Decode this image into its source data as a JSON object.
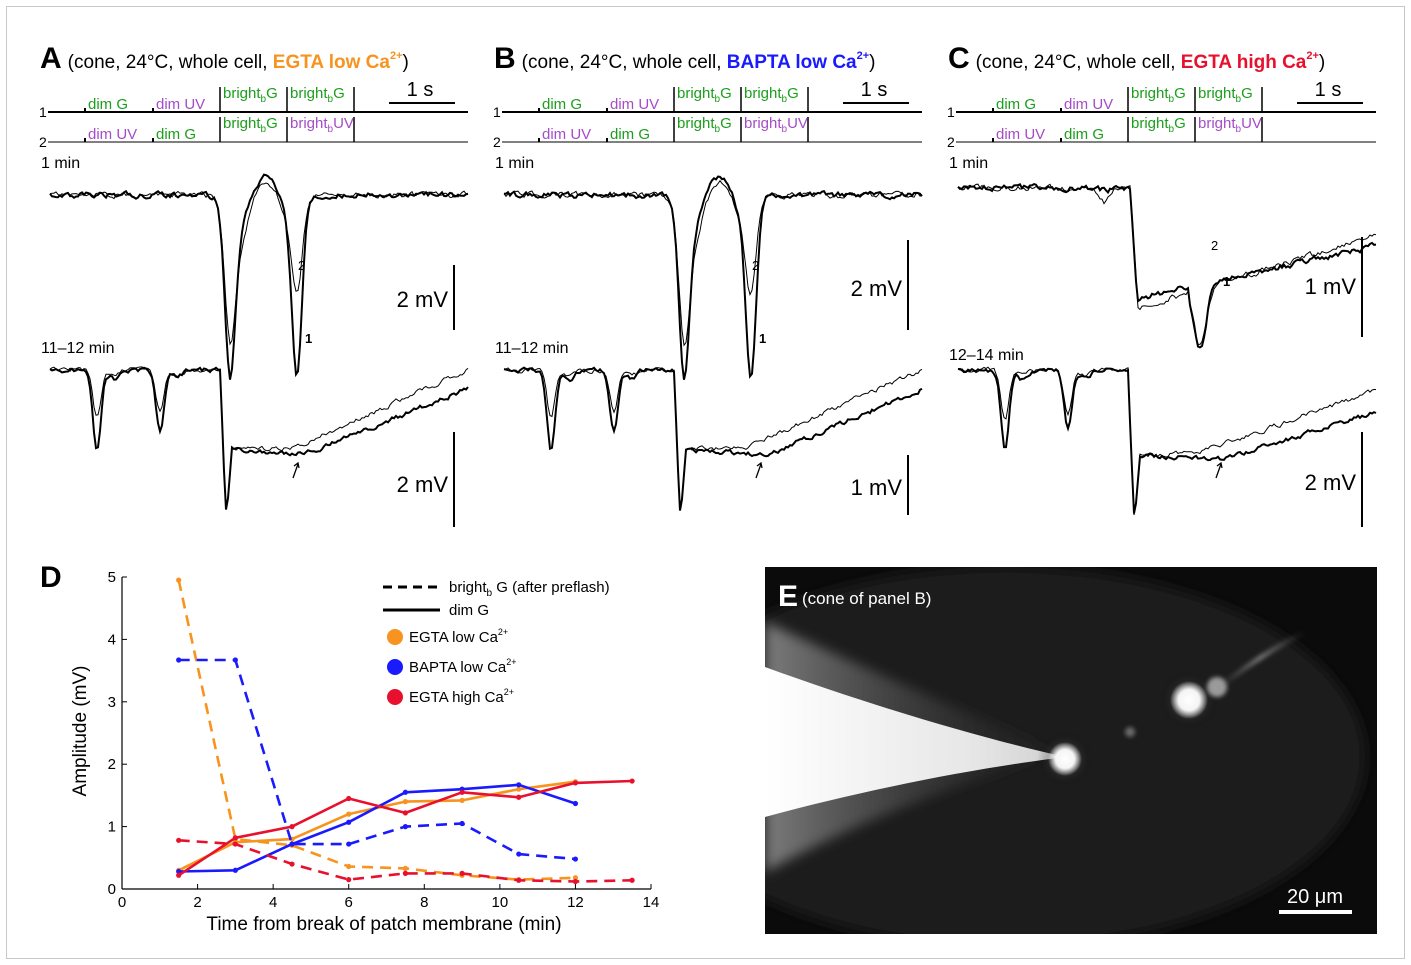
{
  "figure": {
    "colors": {
      "orange": "#f7931e",
      "blue": "#1a1aff",
      "red": "#e8112d",
      "green": "#1b9e1b",
      "purple": "#a64bc8",
      "black": "#000000"
    },
    "panels": [
      {
        "letter": "A",
        "title_pre": "(cone, 24°C, whole cell, ",
        "title_solution": "EGTA low Ca",
        "title_sup": "2+",
        "title_post": ")",
        "title_color": "orange",
        "timescale": "1 s",
        "stim_row1": [
          "dim G",
          "dim UV",
          "bright",
          "bright"
        ],
        "stim_row1_sub": [
          "",
          "",
          "b",
          "b"
        ],
        "stim_row1_tail": [
          "",
          "",
          "G",
          "G"
        ],
        "stim_row2": [
          "dim UV",
          "dim G",
          "bright",
          "bright"
        ],
        "stim_row2_sub": [
          "",
          "",
          "b",
          "b"
        ],
        "stim_row2_tail": [
          "",
          "",
          "G",
          "UV"
        ],
        "row_numbers": [
          "1",
          "2"
        ],
        "top_time": "1 min",
        "top_scale": "2 mV",
        "bottom_time": "11–12 min",
        "bottom_scale": "2 mV",
        "trace_label_thin": "2",
        "trace_label_thick": "1"
      },
      {
        "letter": "B",
        "title_pre": "(cone, 24°C, whole cell, ",
        "title_solution": "BAPTA low Ca",
        "title_sup": "2+",
        "title_post": ")",
        "title_color": "blue",
        "timescale": "1 s",
        "stim_row1": [
          "dim G",
          "dim UV",
          "bright",
          "bright"
        ],
        "stim_row1_sub": [
          "",
          "",
          "b",
          "b"
        ],
        "stim_row1_tail": [
          "",
          "",
          "G",
          "G"
        ],
        "stim_row2": [
          "dim UV",
          "dim G",
          "bright",
          "bright"
        ],
        "stim_row2_sub": [
          "",
          "",
          "b",
          "b"
        ],
        "stim_row2_tail": [
          "",
          "",
          "G",
          "UV"
        ],
        "row_numbers": [
          "1",
          "2"
        ],
        "top_time": "1 min",
        "top_scale": "2 mV",
        "bottom_time": "11–12 min",
        "bottom_scale": "1 mV",
        "trace_label_thin": "2",
        "trace_label_thick": "1"
      },
      {
        "letter": "C",
        "title_pre": "(cone, 24°C, whole cell, ",
        "title_solution": "EGTA high Ca",
        "title_sup": "2+",
        "title_post": ")",
        "title_color": "red",
        "timescale": "1 s",
        "stim_row1": [
          "dim G",
          "dim UV",
          "bright",
          "bright"
        ],
        "stim_row1_sub": [
          "",
          "",
          "b",
          "b"
        ],
        "stim_row1_tail": [
          "",
          "",
          "G",
          "G"
        ],
        "stim_row2": [
          "dim UV",
          "dim G",
          "bright",
          "bright"
        ],
        "stim_row2_sub": [
          "",
          "",
          "b",
          "b"
        ],
        "stim_row2_tail": [
          "",
          "",
          "G",
          "UV"
        ],
        "row_numbers": [
          "1",
          "2"
        ],
        "top_time": "1 min",
        "top_scale": "1 mV",
        "bottom_time": "12–14 min",
        "bottom_scale": "2 mV",
        "trace_label_thin": "2",
        "trace_label_thick": "1"
      }
    ],
    "panel_e": {
      "letter": "E",
      "caption": "(cone of panel B)",
      "scalebar": "20 μm"
    }
  },
  "chart_data": {
    "type": "line",
    "panel_letter": "D",
    "xlabel": "Time from break of patch membrane (min)",
    "ylabel": "Amplitude (mV)",
    "xlim": [
      0,
      14
    ],
    "ylim": [
      0,
      5
    ],
    "xticks": [
      0,
      2,
      4,
      6,
      8,
      10,
      12,
      14
    ],
    "yticks": [
      0,
      1,
      2,
      3,
      4,
      5
    ],
    "grid": false,
    "legend_position": "top-right",
    "legend_style": [
      {
        "dash": true,
        "label_main": "bright",
        "label_sub": "b",
        "label_tail": " G (after preflash)"
      },
      {
        "dash": false,
        "label_main": "dim G",
        "label_sub": "",
        "label_tail": ""
      }
    ],
    "legend_colors": [
      {
        "label": "EGTA low Ca",
        "sup": "2+",
        "color": "#f7931e"
      },
      {
        "label": "BAPTA low Ca",
        "sup": "2+",
        "color": "#1a1aff"
      },
      {
        "label": "EGTA high Ca",
        "sup": "2+",
        "color": "#e8112d"
      }
    ],
    "series": [
      {
        "name": "EGTA low Ca2+",
        "stimulus": "dim G",
        "style": "solid",
        "color": "#f7931e",
        "x": [
          1.5,
          3,
          4.5,
          6,
          7.5,
          9,
          10.5,
          12
        ],
        "y": [
          0.3,
          0.75,
          0.8,
          1.2,
          1.4,
          1.42,
          1.6,
          1.72
        ]
      },
      {
        "name": "EGTA low Ca2+",
        "stimulus": "bright_b G (after preflash)",
        "style": "dashed",
        "color": "#f7931e",
        "x": [
          1.5,
          3,
          4.5,
          6,
          7.5,
          9,
          10.5,
          12
        ],
        "y": [
          4.95,
          0.8,
          0.7,
          0.36,
          0.33,
          0.22,
          0.15,
          0.18
        ]
      },
      {
        "name": "BAPTA low Ca2+",
        "stimulus": "dim G",
        "style": "solid",
        "color": "#1a1aff",
        "x": [
          1.5,
          3,
          4.5,
          6,
          7.5,
          9,
          10.5,
          12
        ],
        "y": [
          0.28,
          0.3,
          0.72,
          1.07,
          1.55,
          1.6,
          1.67,
          1.37
        ]
      },
      {
        "name": "BAPTA low Ca2+",
        "stimulus": "bright_b G (after preflash)",
        "style": "dashed",
        "color": "#1a1aff",
        "x": [
          1.5,
          3,
          4.5,
          6,
          7.5,
          9,
          10.5,
          12
        ],
        "y": [
          3.67,
          3.67,
          0.72,
          0.72,
          1.0,
          1.05,
          0.56,
          0.48
        ]
      },
      {
        "name": "EGTA high Ca2+",
        "stimulus": "dim G",
        "style": "solid",
        "color": "#e8112d",
        "x": [
          1.5,
          3,
          4.5,
          6,
          7.5,
          9,
          10.5,
          12,
          13.5
        ],
        "y": [
          0.22,
          0.82,
          1.0,
          1.45,
          1.22,
          1.55,
          1.47,
          1.7,
          1.73
        ]
      },
      {
        "name": "EGTA high Ca2+",
        "stimulus": "bright_b G (after preflash)",
        "style": "dashed",
        "color": "#e8112d",
        "x": [
          1.5,
          3,
          4.5,
          6,
          7.5,
          9,
          10.5,
          12,
          13.5
        ],
        "y": [
          0.78,
          0.72,
          0.4,
          0.15,
          0.25,
          0.25,
          0.14,
          0.12,
          0.14
        ]
      }
    ]
  }
}
